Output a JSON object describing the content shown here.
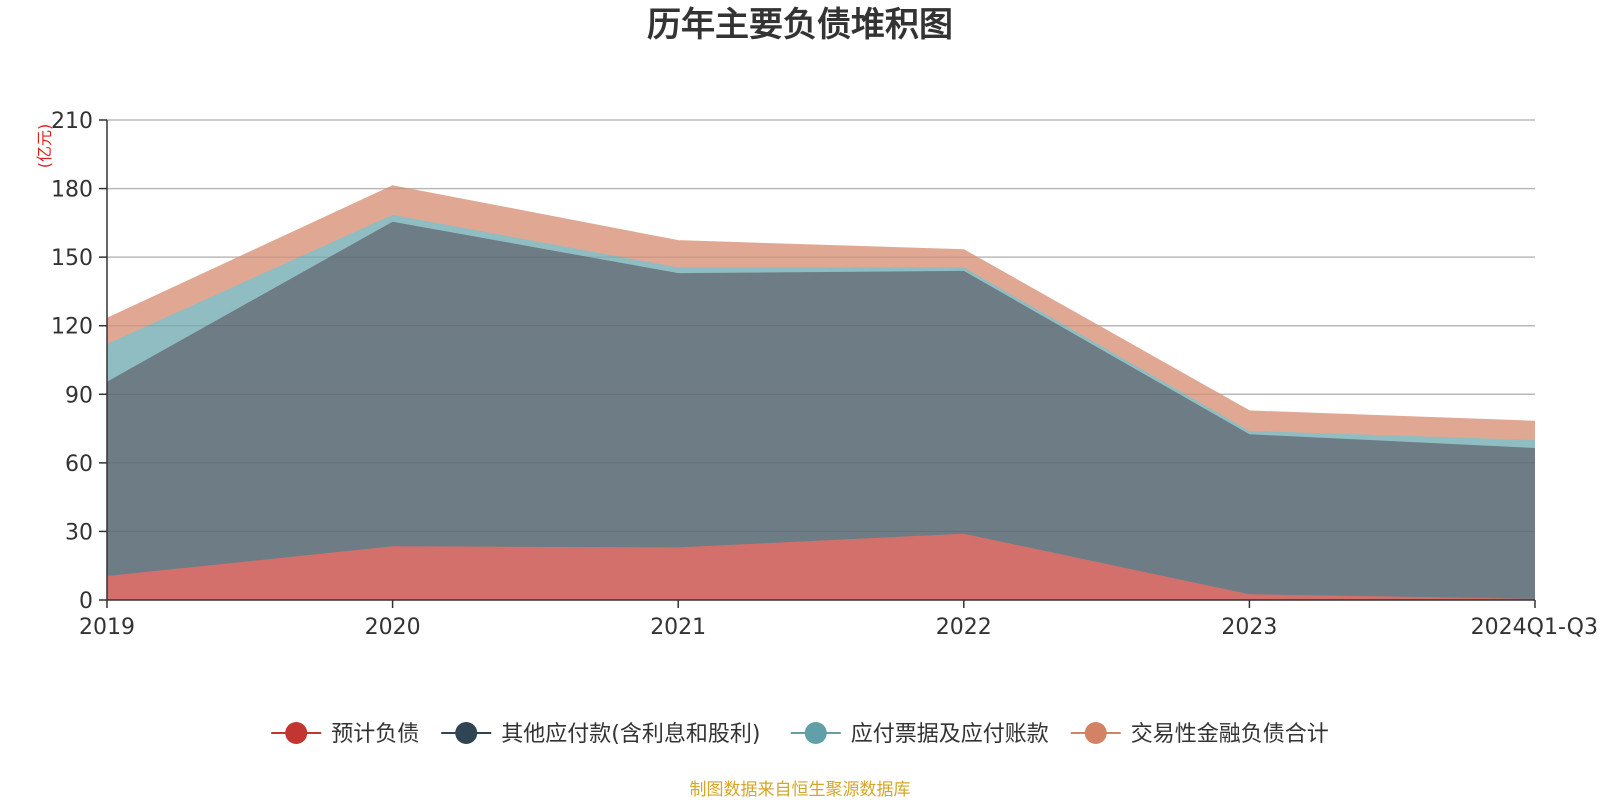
{
  "chart_data": {
    "type": "area",
    "title": "历年主要负债堆积图",
    "unit_label": "(亿元)",
    "xlabel": "",
    "ylabel": "",
    "categories": [
      "2019",
      "2020",
      "2021",
      "2022",
      "2023",
      "2024Q1-Q3"
    ],
    "ylim": [
      0,
      210
    ],
    "yticks": [
      0,
      30,
      60,
      90,
      120,
      150,
      180,
      210
    ],
    "stacked": true,
    "grid": true,
    "legend_position": "bottom-center",
    "series": [
      {
        "name": "预计负债",
        "values": [
          10.5,
          23.5,
          23,
          29,
          2.5,
          0.5
        ],
        "color": "#c23531",
        "fill_color": "#d4706c"
      },
      {
        "name": "其他应付款(含利息和股利)",
        "values": [
          85,
          142,
          120,
          115,
          70,
          66
        ],
        "color": "#2f4554",
        "fill_color": "#6e7c86"
      },
      {
        "name": "应付票据及应付账款",
        "values": [
          16.5,
          3,
          2.5,
          1.5,
          1.5,
          3.5
        ],
        "color": "#61a0a8",
        "fill_color": "#8fbdc1"
      },
      {
        "name": "交易性金融负债合计",
        "values": [
          11,
          12.5,
          11.5,
          7.5,
          8.5,
          8
        ],
        "color": "#d48265",
        "fill_color": "#e0a893"
      }
    ],
    "source": "制图数据来自恒生聚源数据库"
  }
}
